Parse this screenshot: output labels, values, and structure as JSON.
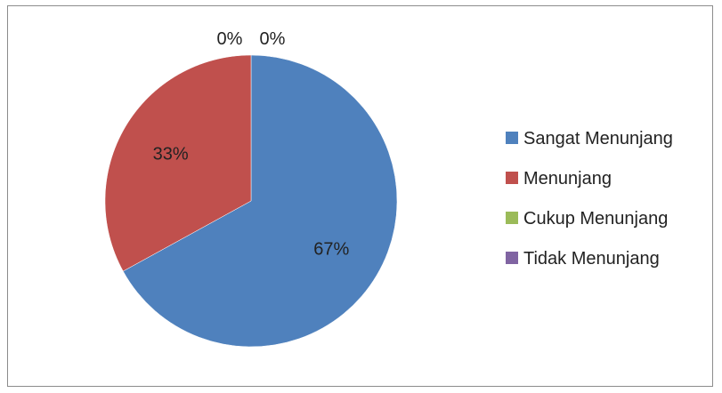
{
  "chart_data": {
    "type": "pie",
    "categories": [
      "Sangat Menunjang",
      "Menunjang",
      "Cukup Menunjang",
      "Tidak Menunjang"
    ],
    "values": [
      67,
      33,
      0,
      0
    ],
    "data_labels": [
      "67%",
      "33%",
      "0%",
      "0%"
    ],
    "colors": [
      "#4F81BD",
      "#C0504D",
      "#9BBB59",
      "#8064A2"
    ],
    "legend": "right",
    "title": ""
  }
}
